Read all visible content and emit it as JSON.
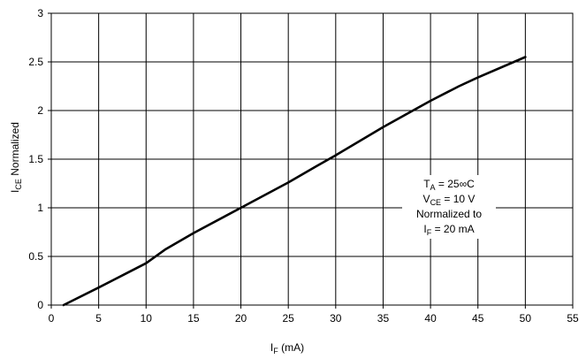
{
  "chart_data": {
    "type": "line",
    "xlabel": "I",
    "xlabel_sub": "F",
    "xlabel_unit": " (mA)",
    "ylabel": "I",
    "ylabel_sub": "CE",
    "ylabel_rest": " Normalized",
    "xlim": [
      0,
      55
    ],
    "ylim": [
      0,
      3
    ],
    "xticks": [
      0,
      5,
      10,
      15,
      20,
      25,
      30,
      35,
      40,
      45,
      50,
      55
    ],
    "yticks": [
      0,
      0.5,
      1,
      1.5,
      2,
      2.5,
      3
    ],
    "xtick_labels": [
      "0",
      "5",
      "10",
      "15",
      "20",
      "25",
      "30",
      "35",
      "40",
      "45",
      "50",
      "55"
    ],
    "ytick_labels": [
      "0",
      "0.5",
      "1",
      "1.5",
      "2",
      "2.5",
      "3"
    ],
    "grid": true,
    "series": [
      {
        "x": [
          1.3,
          5,
          8,
          10,
          12,
          15,
          20,
          25,
          28,
          30,
          35,
          40,
          43,
          45,
          50
        ],
        "y": [
          0,
          0.18,
          0.33,
          0.43,
          0.57,
          0.74,
          1.0,
          1.26,
          1.43,
          1.54,
          1.83,
          2.1,
          2.25,
          2.34,
          2.55
        ]
      }
    ],
    "annotation": {
      "line1_main": "T",
      "line1_sub": "A",
      "line1_rest": " = 25∞C",
      "line2_main": "V",
      "line2_sub": "CE",
      "line2_rest": " = 10 V",
      "line3": "Normalized to",
      "line4_main": "I",
      "line4_sub": "F",
      "line4_rest": " = 20 mA"
    },
    "colors": {
      "line": "#000000",
      "grid": "#000000",
      "background": "#ffffff"
    }
  }
}
